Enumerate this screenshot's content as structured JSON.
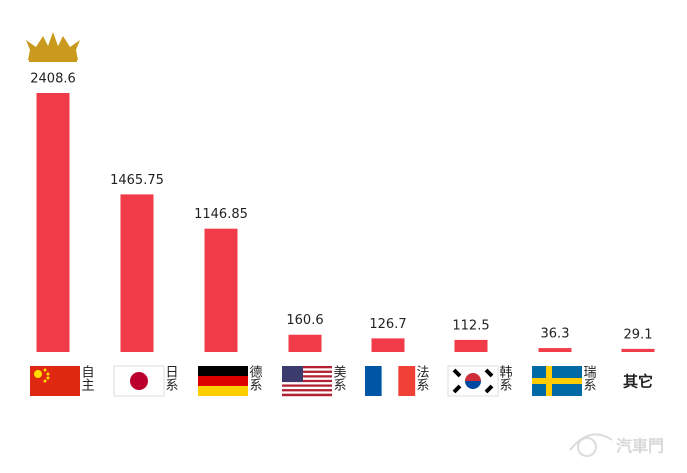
{
  "chart_data": {
    "type": "bar",
    "categories": [
      "自主",
      "日系",
      "德系",
      "美系",
      "法系",
      "韩系",
      "瑞系",
      "其它"
    ],
    "values": [
      2408.6,
      1465.75,
      1146.85,
      160.6,
      126.7,
      112.5,
      36.3,
      29.1
    ],
    "color": "#f23b48"
  },
  "watermark": "汽車門"
}
